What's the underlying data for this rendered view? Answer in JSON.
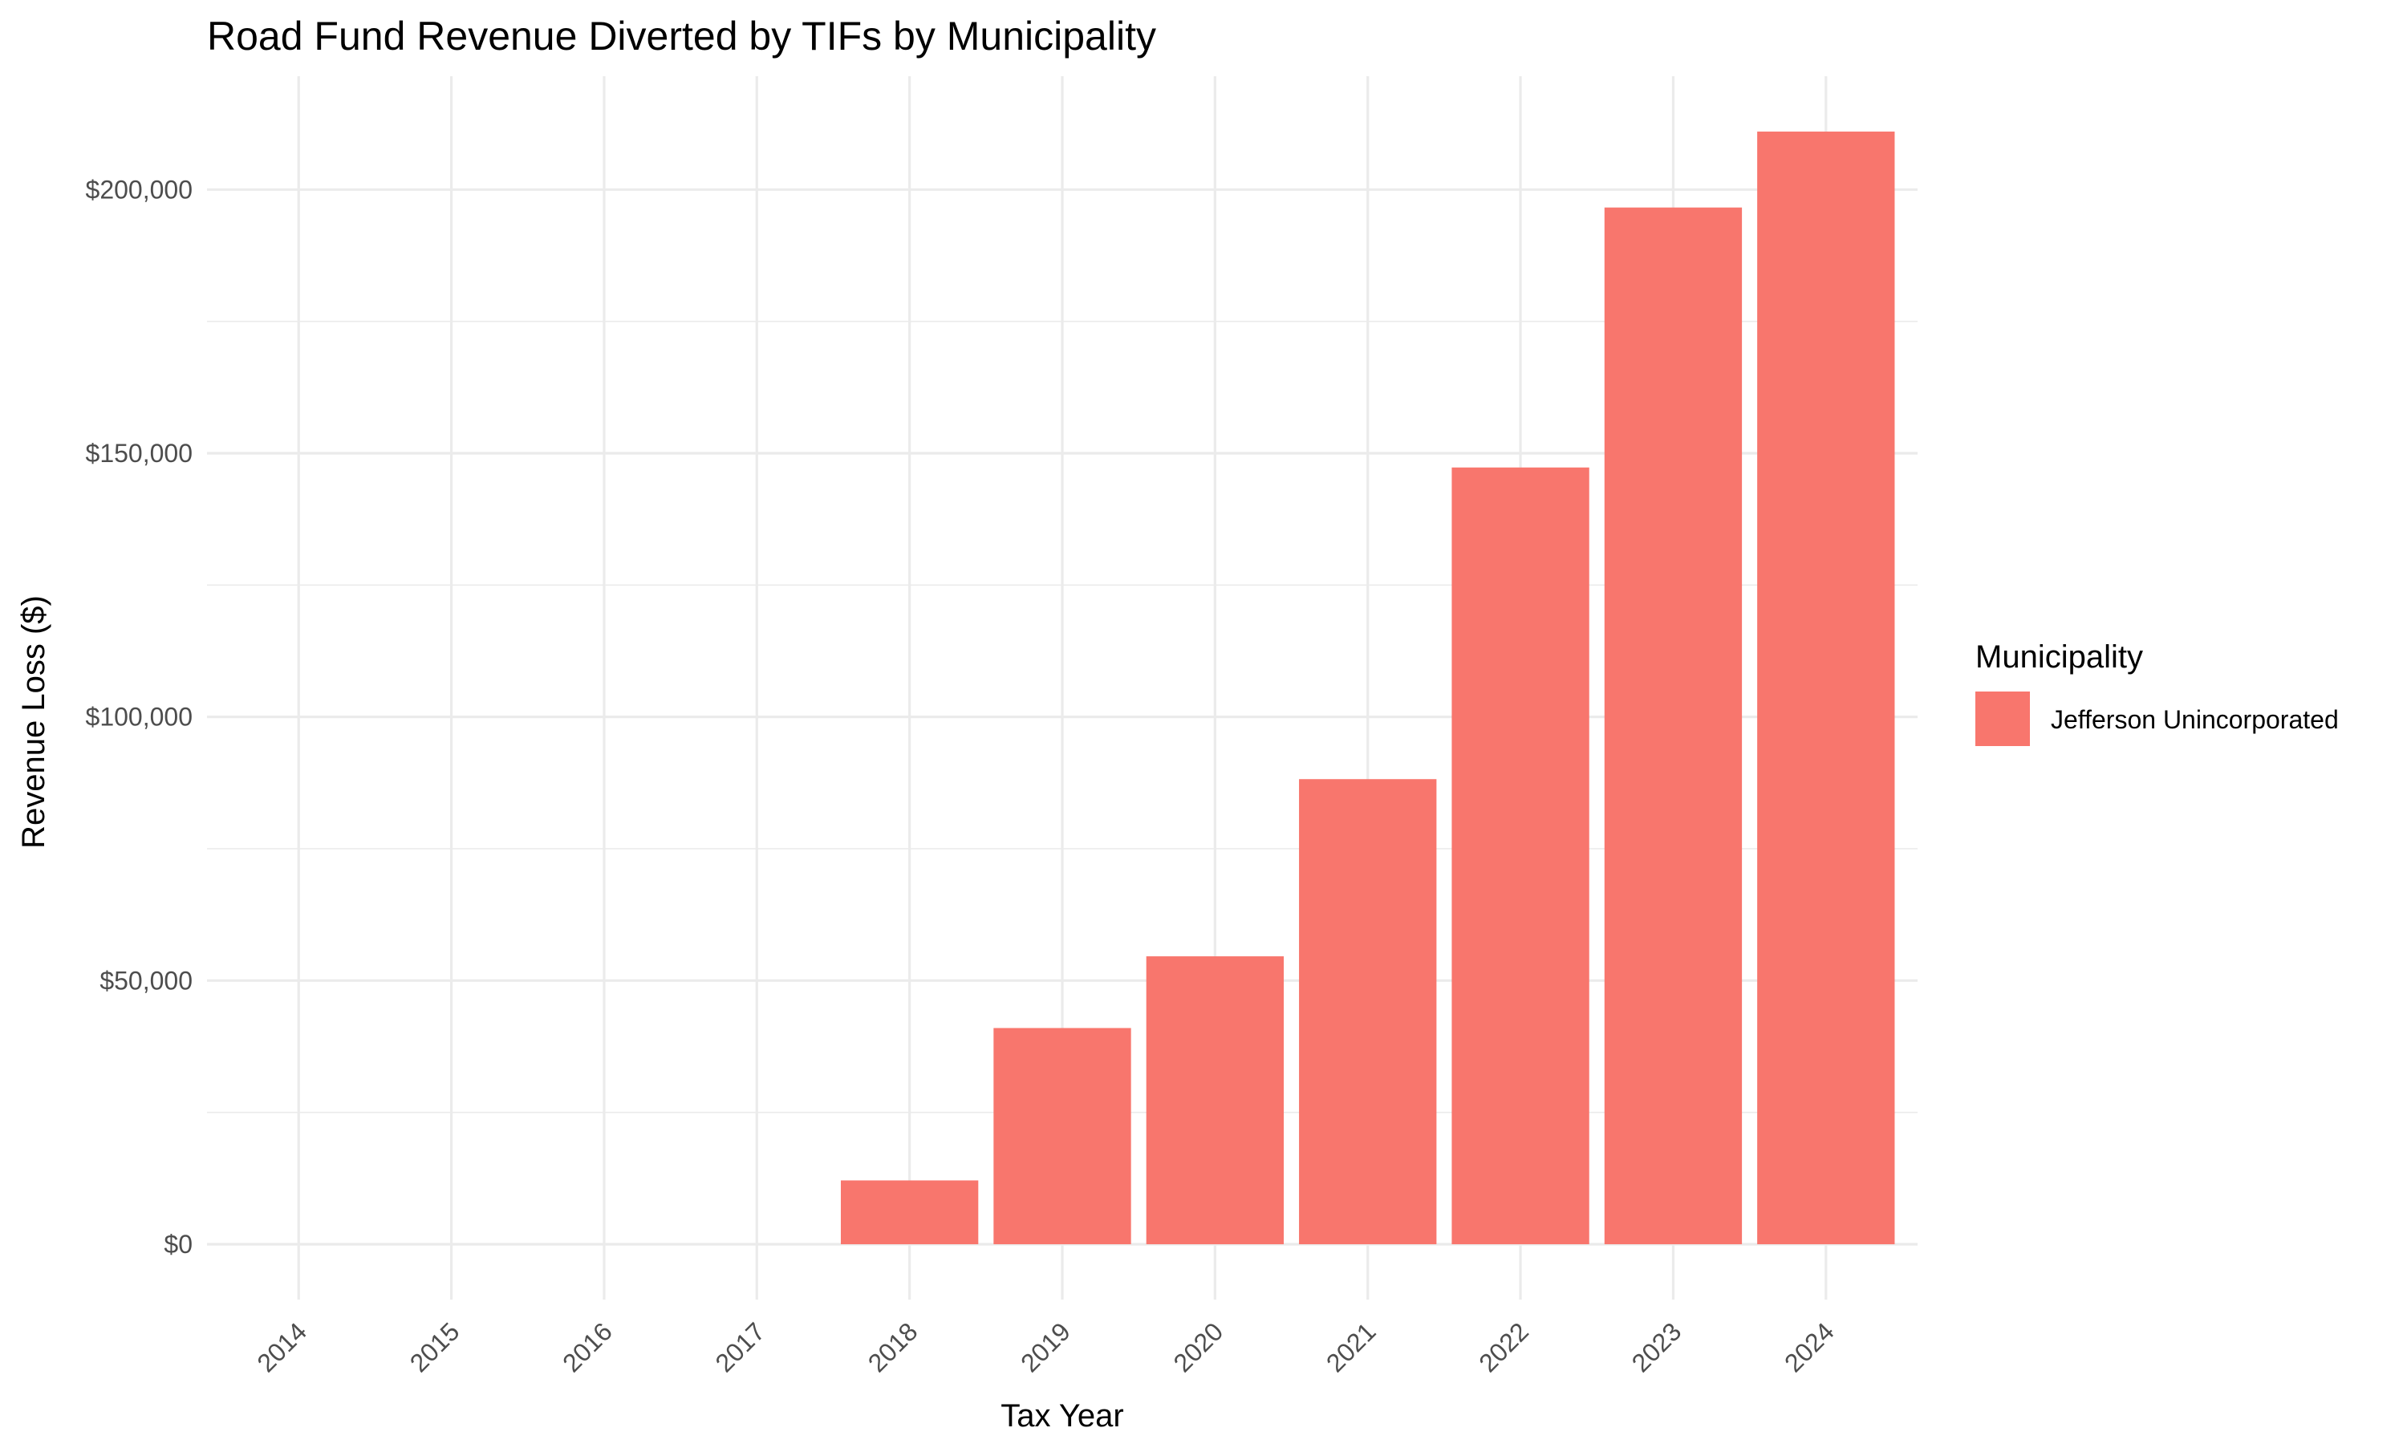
{
  "chart_data": {
    "type": "bar",
    "title": "Road Fund Revenue Diverted by TIFs by Municipality",
    "xlabel": "Tax Year",
    "ylabel": "Revenue Loss ($)",
    "categories": [
      "2014",
      "2015",
      "2016",
      "2017",
      "2018",
      "2019",
      "2020",
      "2021",
      "2022",
      "2023",
      "2024"
    ],
    "series": [
      {
        "name": "Jefferson Unincorporated",
        "color": "#F8766D",
        "values": [
          0,
          0,
          0,
          0,
          12100,
          41000,
          54600,
          88200,
          147300,
          196600,
          211000
        ]
      }
    ],
    "ylim": [
      -10500,
      221500
    ],
    "yticks": [
      0,
      50000,
      100000,
      150000,
      200000
    ],
    "ytick_labels": [
      "$0",
      "$50,000",
      "$100,000",
      "$150,000",
      "$200,000"
    ],
    "grid": true,
    "legend": {
      "title": "Municipality",
      "position": "right"
    }
  }
}
